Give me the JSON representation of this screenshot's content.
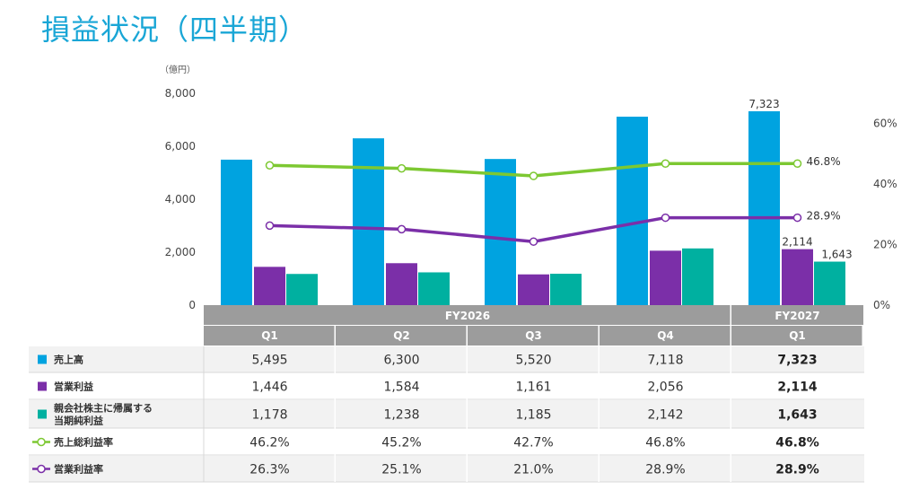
{
  "title": "損益状況（四半期）",
  "unit": "（億円）",
  "chart_data": {
    "type": "bar",
    "categories": [
      "Q1",
      "Q2",
      "Q3",
      "Q4",
      "Q1"
    ],
    "groups": [
      {
        "label": "FY2026",
        "span": 4
      },
      {
        "label": "FY2027",
        "span": 1
      }
    ],
    "y_left": {
      "ylim": [
        0,
        8000
      ],
      "ticks": [
        "0",
        "2,000",
        "4,000",
        "6,000",
        "8,000"
      ],
      "tick_values": [
        0,
        2000,
        4000,
        6000,
        8000
      ]
    },
    "y_right": {
      "ylim": [
        0,
        70
      ],
      "ticks": [
        "0%",
        "20%",
        "40%",
        "60%"
      ],
      "tick_values": [
        0,
        20,
        40,
        60
      ]
    },
    "bar_series": [
      {
        "name": "売上高",
        "color": "#00a3e0",
        "values": [
          5495,
          6300,
          5520,
          7118,
          7323
        ],
        "display": [
          "5,495",
          "6,300",
          "5,520",
          "7,118",
          "7,323"
        ],
        "last_label": "7,323"
      },
      {
        "name": "営業利益",
        "color": "#7b2fa8",
        "values": [
          1446,
          1584,
          1161,
          2056,
          2114
        ],
        "display": [
          "1,446",
          "1,584",
          "1,161",
          "2,056",
          "2,114"
        ],
        "last_label": "2,114"
      },
      {
        "name": "親会社株主に帰属する当期純利益",
        "name_lines": [
          "親会社株主に帰属する",
          "当期純利益"
        ],
        "color": "#00b0a0",
        "values": [
          1178,
          1238,
          1185,
          2142,
          1643
        ],
        "display": [
          "1,178",
          "1,238",
          "1,185",
          "2,142",
          "1,643"
        ],
        "last_label": "1,643"
      }
    ],
    "line_series": [
      {
        "name": "売上総利益率",
        "color": "#7dc832",
        "values": [
          46.2,
          45.2,
          42.7,
          46.8,
          46.8
        ],
        "display": [
          "46.2%",
          "45.2%",
          "42.7%",
          "46.8%",
          "46.8%"
        ],
        "last_label": "46.8%"
      },
      {
        "name": "営業利益率",
        "color": "#7b2fa8",
        "values": [
          26.3,
          25.1,
          21.0,
          28.9,
          28.9
        ],
        "display": [
          "26.3%",
          "25.1%",
          "21.0%",
          "28.9%",
          "28.9%"
        ],
        "last_label": "28.9%"
      }
    ]
  }
}
